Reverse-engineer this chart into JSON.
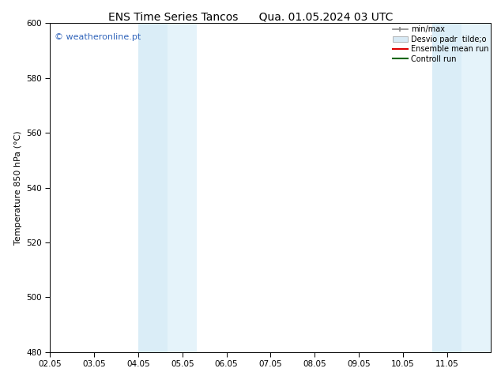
{
  "title_left": "ENS Time Series Tancos",
  "title_right": "Qua. 01.05.2024 03 UTC",
  "ylabel": "Temperature 850 hPa (°C)",
  "xlim_labels": [
    "02.05",
    "03.05",
    "04.05",
    "05.05",
    "06.05",
    "07.05",
    "08.05",
    "09.05",
    "10.05",
    "11.05"
  ],
  "xlim": [
    0.0,
    10.0
  ],
  "ylim": [
    480,
    600
  ],
  "yticks": [
    480,
    500,
    520,
    540,
    560,
    580,
    600
  ],
  "bg_color": "#ffffff",
  "plot_bg_color": "#ffffff",
  "band1_x0": 2.0,
  "band1_x1": 2.67,
  "band2_x0": 2.67,
  "band2_x1": 3.33,
  "band3_x0": 8.67,
  "band3_x1": 9.33,
  "band4_x0": 9.33,
  "band4_x1": 10.0,
  "band_color_outer": "#daedf7",
  "band_color_inner": "#e5f3fa",
  "watermark_text": "© weatheronline.pt",
  "watermark_color": "#3366bb",
  "legend_label_minmax": "min/max",
  "legend_label_desvio": "Desvio padr  tilde;o",
  "legend_label_ensemble": "Ensemble mean run",
  "legend_label_controll": "Controll run",
  "legend_color_minmax": "#888888",
  "legend_color_desvio": "#d8eaf5",
  "legend_color_ensemble": "#dd0000",
  "legend_color_controll": "#006600",
  "title_fontsize": 10,
  "label_fontsize": 8,
  "tick_fontsize": 7.5
}
